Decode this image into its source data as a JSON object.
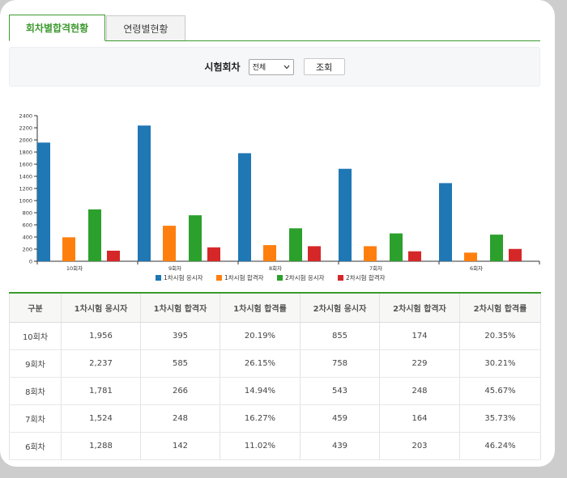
{
  "tabs": [
    {
      "label": "회차별합격현황",
      "active": true
    },
    {
      "label": "연령별현황",
      "active": false
    }
  ],
  "filter": {
    "label": "시험회차",
    "select_value": "전체",
    "button_label": "조회"
  },
  "chart_data": {
    "type": "bar",
    "categories": [
      "10회차",
      "9회차",
      "8회차",
      "7회차",
      "6회차"
    ],
    "ylim": [
      0,
      2400
    ],
    "yticks": [
      0,
      200,
      400,
      600,
      800,
      1000,
      1200,
      1400,
      1600,
      1800,
      2000,
      2200,
      2400
    ],
    "legend_position": "bottom",
    "series": [
      {
        "name": "1차시험 응시자",
        "color": "#1f77b4",
        "values": [
          1956,
          2237,
          1781,
          1524,
          1288
        ]
      },
      {
        "name": "1차시험 합격자",
        "color": "#ff7f0e",
        "values": [
          395,
          585,
          266,
          248,
          142
        ]
      },
      {
        "name": "2차시험 응시자",
        "color": "#2ca02c",
        "values": [
          855,
          758,
          543,
          459,
          439
        ]
      },
      {
        "name": "2차시험 합격자",
        "color": "#d62728",
        "values": [
          174,
          229,
          248,
          164,
          203
        ]
      }
    ]
  },
  "table": {
    "headers": [
      "구분",
      "1차시험 응시자",
      "1차시험 합격자",
      "1차시험 합격률",
      "2차시험 응시자",
      "2차시험 합격자",
      "2차시험 합격률"
    ],
    "rows": [
      [
        "10회차",
        "1,956",
        "395",
        "20.19%",
        "855",
        "174",
        "20.35%"
      ],
      [
        "9회차",
        "2,237",
        "585",
        "26.15%",
        "758",
        "229",
        "30.21%"
      ],
      [
        "8회차",
        "1,781",
        "266",
        "14.94%",
        "543",
        "248",
        "45.67%"
      ],
      [
        "7회차",
        "1,524",
        "248",
        "16.27%",
        "459",
        "164",
        "35.73%"
      ],
      [
        "6회차",
        "1,288",
        "142",
        "11.02%",
        "439",
        "203",
        "46.24%"
      ]
    ]
  }
}
